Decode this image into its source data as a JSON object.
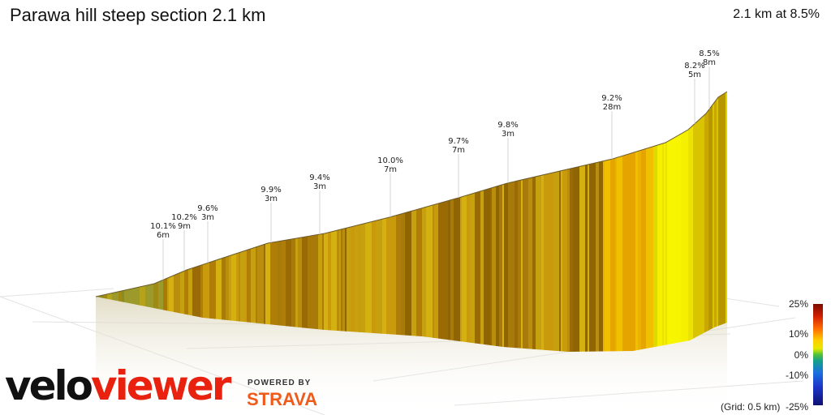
{
  "title": "Parawa hill steep section 2.1 km",
  "summary": "2.1 km at 8.5%",
  "brand": {
    "part1": "velo",
    "part2": "viewer"
  },
  "powered_by": "POWERED BY",
  "strava": "STRAVA",
  "grid_note": "(Grid: 0.5 km)",
  "colorbar": {
    "labels": [
      "25%",
      "10%",
      "0%",
      "-10%",
      "-25%"
    ]
  },
  "chart_data": {
    "type": "area",
    "title": "Parawa hill steep section 2.1 km",
    "distance_km": 2.1,
    "average_gradient_pct": 8.5,
    "grid_km": 0.5,
    "gradient_colour_scale_pct": [
      25,
      10,
      0,
      -10,
      -25
    ],
    "annotations": [
      {
        "gradient": "10.1%",
        "length": "6m"
      },
      {
        "gradient": "10.2%",
        "length": "9m"
      },
      {
        "gradient": "9.6%",
        "length": "3m"
      },
      {
        "gradient": "9.9%",
        "length": "3m"
      },
      {
        "gradient": "9.4%",
        "length": "3m"
      },
      {
        "gradient": "10.0%",
        "length": "7m"
      },
      {
        "gradient": "9.7%",
        "length": "7m"
      },
      {
        "gradient": "9.8%",
        "length": "3m"
      },
      {
        "gradient": "9.2%",
        "length": "28m"
      },
      {
        "gradient": "8.2%",
        "length": "5m"
      },
      {
        "gradient": "8.5%",
        "length": "8m"
      }
    ]
  }
}
